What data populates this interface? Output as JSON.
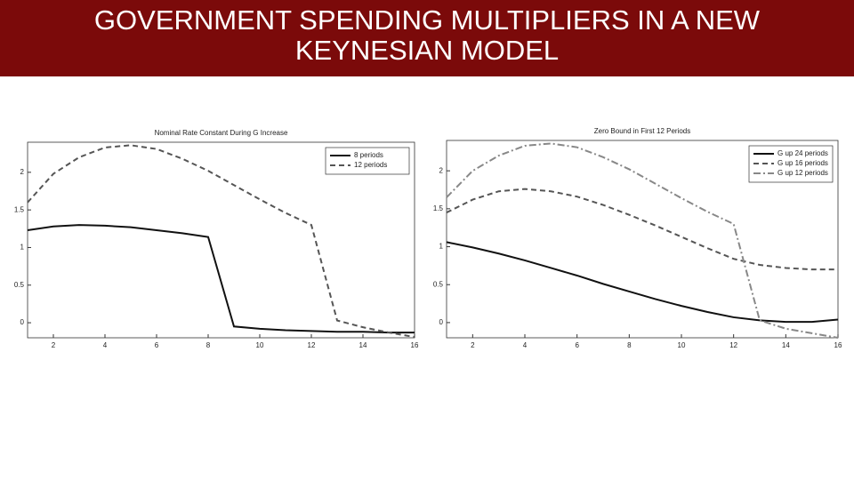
{
  "slide_title": "GOVERNMENT SPENDING MULTIPLIERS IN A NEW KEYNESIAN MODEL",
  "chart_data": [
    {
      "type": "line",
      "title": "Nominal Rate Constant During G Increase",
      "x": [
        1,
        2,
        3,
        4,
        5,
        6,
        7,
        8,
        9,
        10,
        11,
        12,
        13,
        14,
        15,
        16
      ],
      "xlim": [
        1,
        16
      ],
      "xticks": [
        2,
        4,
        6,
        8,
        10,
        12,
        14,
        16
      ],
      "ylim": [
        -0.2,
        2.4
      ],
      "yticks": [
        0,
        0.5,
        1,
        1.5,
        2
      ],
      "legend": "upper right",
      "series": [
        {
          "name": "8 periods",
          "color": "#111111",
          "style": "solid",
          "values": [
            1.23,
            1.28,
            1.3,
            1.29,
            1.27,
            1.23,
            1.19,
            1.14,
            -0.05,
            -0.08,
            -0.1,
            -0.11,
            -0.12,
            -0.12,
            -0.13,
            -0.13
          ]
        },
        {
          "name": "12 periods",
          "color": "#555555",
          "style": "dashed",
          "values": [
            1.6,
            1.98,
            2.2,
            2.33,
            2.36,
            2.31,
            2.18,
            2.02,
            1.83,
            1.64,
            1.46,
            1.3,
            0.03,
            -0.06,
            -0.13,
            -0.19
          ]
        }
      ]
    },
    {
      "type": "line",
      "title": "Zero Bound in First 12 Periods",
      "x": [
        1,
        2,
        3,
        4,
        5,
        6,
        7,
        8,
        9,
        10,
        11,
        12,
        13,
        14,
        15,
        16
      ],
      "xlim": [
        1,
        16
      ],
      "xticks": [
        2,
        4,
        6,
        8,
        10,
        12,
        14,
        16
      ],
      "ylim": [
        -0.2,
        2.4
      ],
      "yticks": [
        0,
        0.5,
        1,
        1.5,
        2
      ],
      "legend": "upper right",
      "series": [
        {
          "name": "G up 24 periods",
          "color": "#111111",
          "style": "solid",
          "values": [
            1.06,
            0.99,
            0.91,
            0.82,
            0.72,
            0.62,
            0.51,
            0.41,
            0.31,
            0.22,
            0.14,
            0.07,
            0.03,
            0.01,
            0.01,
            0.04
          ]
        },
        {
          "name": "G up 16 periods",
          "color": "#555555",
          "style": "dashed",
          "values": [
            1.45,
            1.62,
            1.73,
            1.76,
            1.73,
            1.66,
            1.55,
            1.42,
            1.28,
            1.13,
            0.98,
            0.84,
            0.76,
            0.72,
            0.7,
            0.7
          ]
        },
        {
          "name": "G up 12 periods",
          "color": "#888888",
          "style": "dashdot",
          "values": [
            1.65,
            2.0,
            2.2,
            2.33,
            2.36,
            2.31,
            2.18,
            2.02,
            1.83,
            1.64,
            1.46,
            1.3,
            0.03,
            -0.08,
            -0.14,
            -0.2
          ]
        }
      ]
    }
  ]
}
